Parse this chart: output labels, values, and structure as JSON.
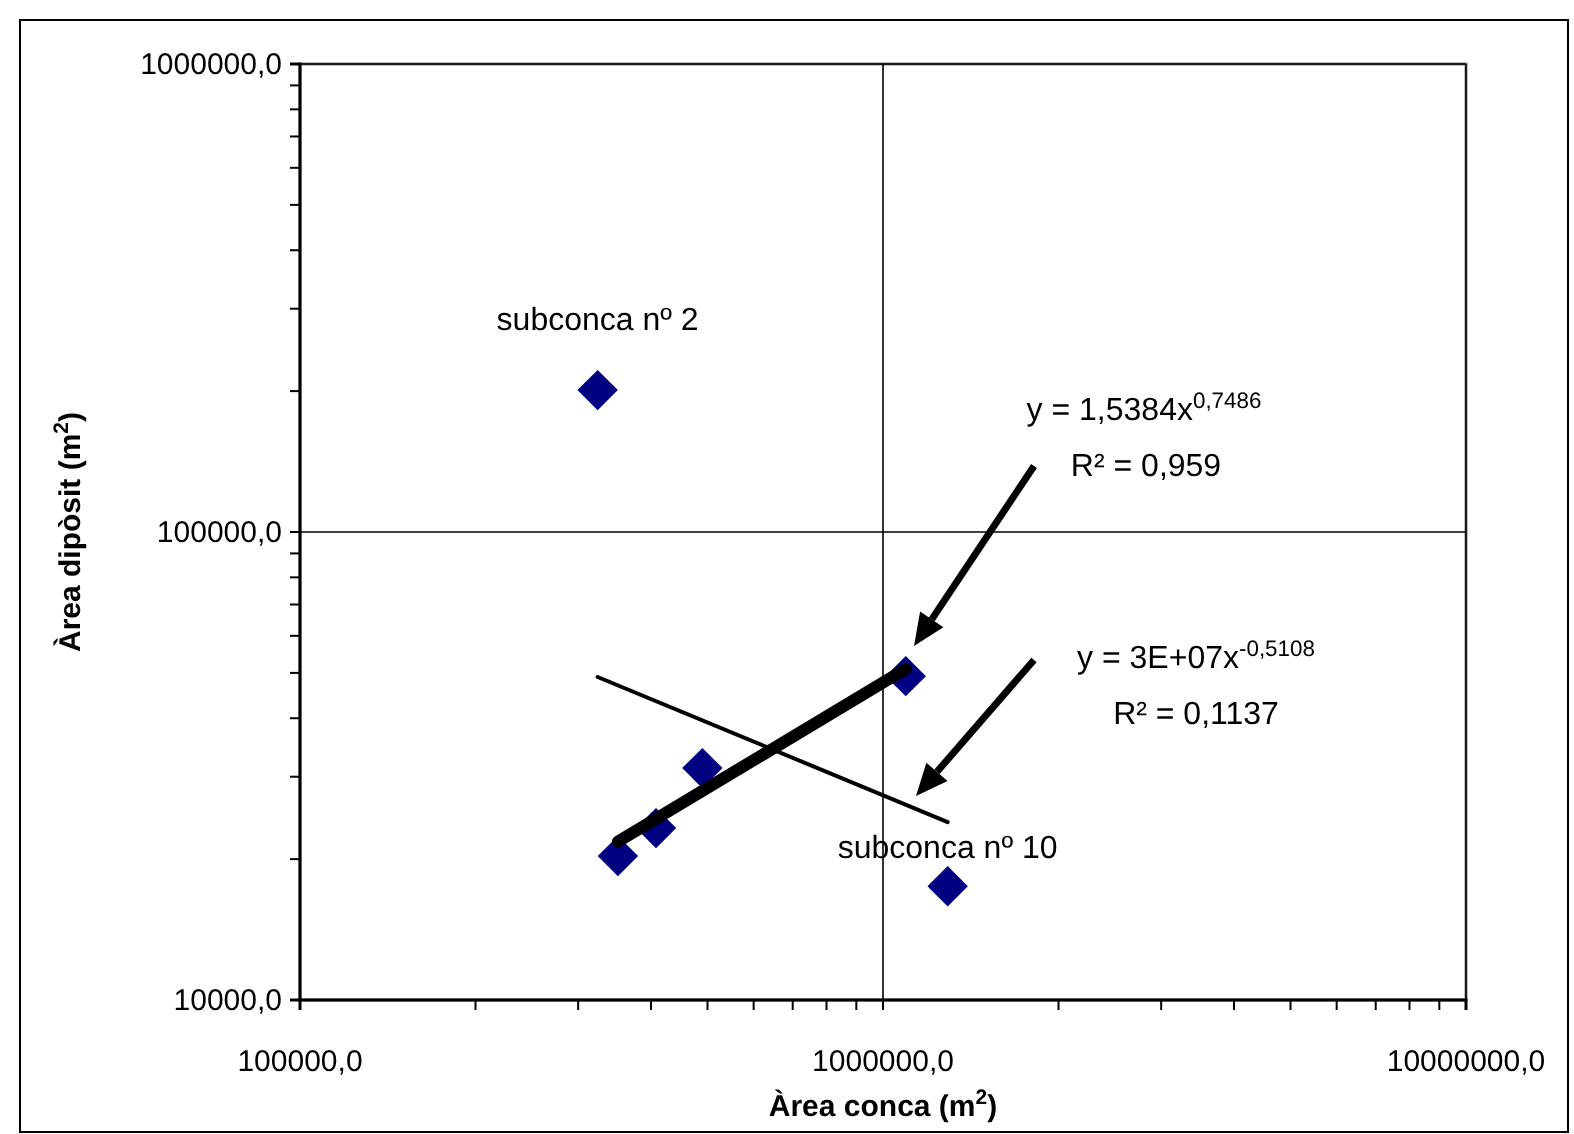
{
  "chart_data": {
    "type": "scatter",
    "xlabel": "Àrea conca (m$^{2}$)",
    "ylabel": "Àrea dipòsit (m$^{2}$)",
    "log": "xy",
    "grid": true,
    "marker": "diamond",
    "xlim": [
      100000,
      10000000
    ],
    "ylim": [
      10000,
      1000000
    ],
    "xticks": [
      {
        "value": 100000,
        "label": "100000,0"
      },
      {
        "value": 200000,
        "label": null
      },
      {
        "value": 300000,
        "label": null
      },
      {
        "value": 400000,
        "label": null
      },
      {
        "value": 500000,
        "label": null
      },
      {
        "value": 600000,
        "label": null
      },
      {
        "value": 700000,
        "label": null
      },
      {
        "value": 800000,
        "label": null
      },
      {
        "value": 900000,
        "label": null
      },
      {
        "value": 1000000,
        "label": "1000000,0"
      },
      {
        "value": 2000000,
        "label": null
      },
      {
        "value": 3000000,
        "label": null
      },
      {
        "value": 4000000,
        "label": null
      },
      {
        "value": 5000000,
        "label": null
      },
      {
        "value": 6000000,
        "label": null
      },
      {
        "value": 7000000,
        "label": null
      },
      {
        "value": 8000000,
        "label": null
      },
      {
        "value": 9000000,
        "label": null
      },
      {
        "value": 10000000,
        "label": "10000000,0"
      }
    ],
    "yticks": [
      {
        "value": 10000,
        "label": "10000,0"
      },
      {
        "value": 20000,
        "label": null
      },
      {
        "value": 30000,
        "label": null
      },
      {
        "value": 40000,
        "label": null
      },
      {
        "value": 50000,
        "label": null
      },
      {
        "value": 60000,
        "label": null
      },
      {
        "value": 70000,
        "label": null
      },
      {
        "value": 80000,
        "label": null
      },
      {
        "value": 90000,
        "label": null
      },
      {
        "value": 100000,
        "label": "100000,0"
      },
      {
        "value": 200000,
        "label": null
      },
      {
        "value": 300000,
        "label": null
      },
      {
        "value": 400000,
        "label": null
      },
      {
        "value": 500000,
        "label": null
      },
      {
        "value": 600000,
        "label": null
      },
      {
        "value": 700000,
        "label": null
      },
      {
        "value": 800000,
        "label": null
      },
      {
        "value": 900000,
        "label": null
      },
      {
        "value": 1000000,
        "label": "1000000,0"
      }
    ],
    "series": [
      {
        "color": "#000080",
        "x": [
          324000,
          351000,
          408000,
          490000,
          1094000,
          1291000
        ],
        "values": [
          201000,
          20300,
          23300,
          31300,
          49200,
          17500
        ]
      },
      {
        "type": "line",
        "color": "#000000",
        "marker": "none",
        "x": [
          351000,
          1094000
        ],
        "values": [
          21800,
          51000
        ]
      },
      {
        "type": "line",
        "color": "#000000",
        "marker": "none",
        "x": [
          324000,
          1291000
        ],
        "values": [
          49000,
          24000
        ]
      }
    ],
    "annotations": [
      {
        "text": "subconca nº 2",
        "x": 324000,
        "y": 201000
      },
      {
        "text": "subconca nº 10",
        "x": 1291000,
        "y": 17500
      },
      "y = 1,5384x$^{0,7486}$",
      "R² = 0,959",
      "y = 3E+07x$^{-0,5108}$",
      "R² = 0,1137"
    ]
  }
}
